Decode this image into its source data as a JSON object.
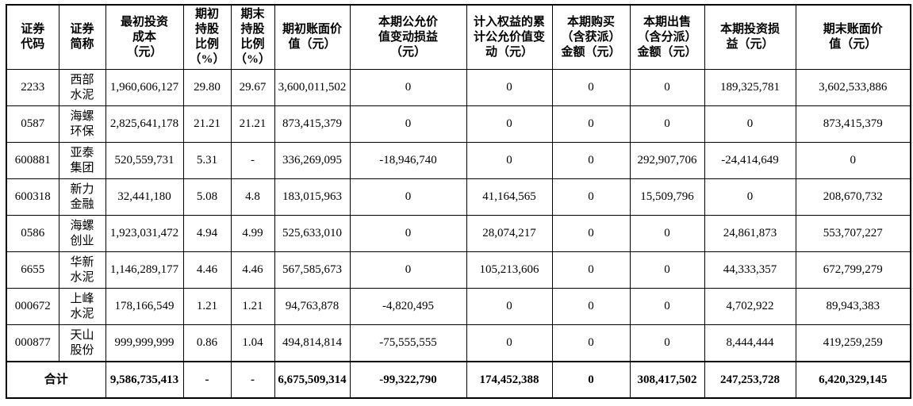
{
  "table": {
    "headers": [
      "证券\n代码",
      "证券\n简称",
      "最初投资\n成本\n（元）",
      "期初\n持股\n比例\n（%）",
      "期末\n持股\n比例\n（%）",
      "期初账面价\n值（元）",
      "本期公允价\n值变动损益\n（元）",
      "计入权益的累\n计公允价值变\n动（元）",
      "本期购买\n（含获派）\n金额（元）",
      "本期出售\n（含分派）\n金额（元）",
      "本期投资损\n益（元）",
      "期末账面价\n值（元）"
    ],
    "rows": [
      [
        "2233",
        "西部\n水泥",
        "1,960,606,127",
        "29.80",
        "29.67",
        "3,600,011,502",
        "0",
        "0",
        "0",
        "0",
        "189,325,781",
        "3,602,533,886"
      ],
      [
        "0587",
        "海螺\n环保",
        "2,825,641,178",
        "21.21",
        "21.21",
        "873,415,379",
        "0",
        "0",
        "0",
        "0",
        "0",
        "873,415,379"
      ],
      [
        "600881",
        "亚泰\n集团",
        "520,559,731",
        "5.31",
        "-",
        "336,269,095",
        "-18,946,740",
        "0",
        "0",
        "292,907,706",
        "-24,414,649",
        "0"
      ],
      [
        "600318",
        "新力\n金融",
        "32,441,180",
        "5.08",
        "4.8",
        "183,015,963",
        "0",
        "41,164,565",
        "0",
        "15,509,796",
        "0",
        "208,670,732"
      ],
      [
        "0586",
        "海螺\n创业",
        "1,923,031,472",
        "4.94",
        "4.99",
        "525,633,010",
        "0",
        "28,074,217",
        "0",
        "0",
        "24,861,873",
        "553,707,227"
      ],
      [
        "6655",
        "华新\n水泥",
        "1,146,289,177",
        "4.46",
        "4.46",
        "567,585,673",
        "0",
        "105,213,606",
        "0",
        "0",
        "44,333,357",
        "672,799,279"
      ],
      [
        "000672",
        "上峰\n水泥",
        "178,166,549",
        "1.21",
        "1.21",
        "94,763,878",
        "-4,820,495",
        "0",
        "0",
        "0",
        "4,702,922",
        "89,943,383"
      ],
      [
        "000877",
        "天山\n股份",
        "999,999,999",
        "0.86",
        "1.04",
        "494,814,814",
        "-75,555,555",
        "0",
        "0",
        "0",
        "8,444,444",
        "419,259,259"
      ]
    ],
    "total_row": {
      "label": "合计",
      "values": [
        "9,586,735,413",
        "-",
        "-",
        "6,675,509,314",
        "-99,322,790",
        "174,452,388",
        "0",
        "308,417,502",
        "247,253,728",
        "6,420,329,145"
      ]
    }
  }
}
